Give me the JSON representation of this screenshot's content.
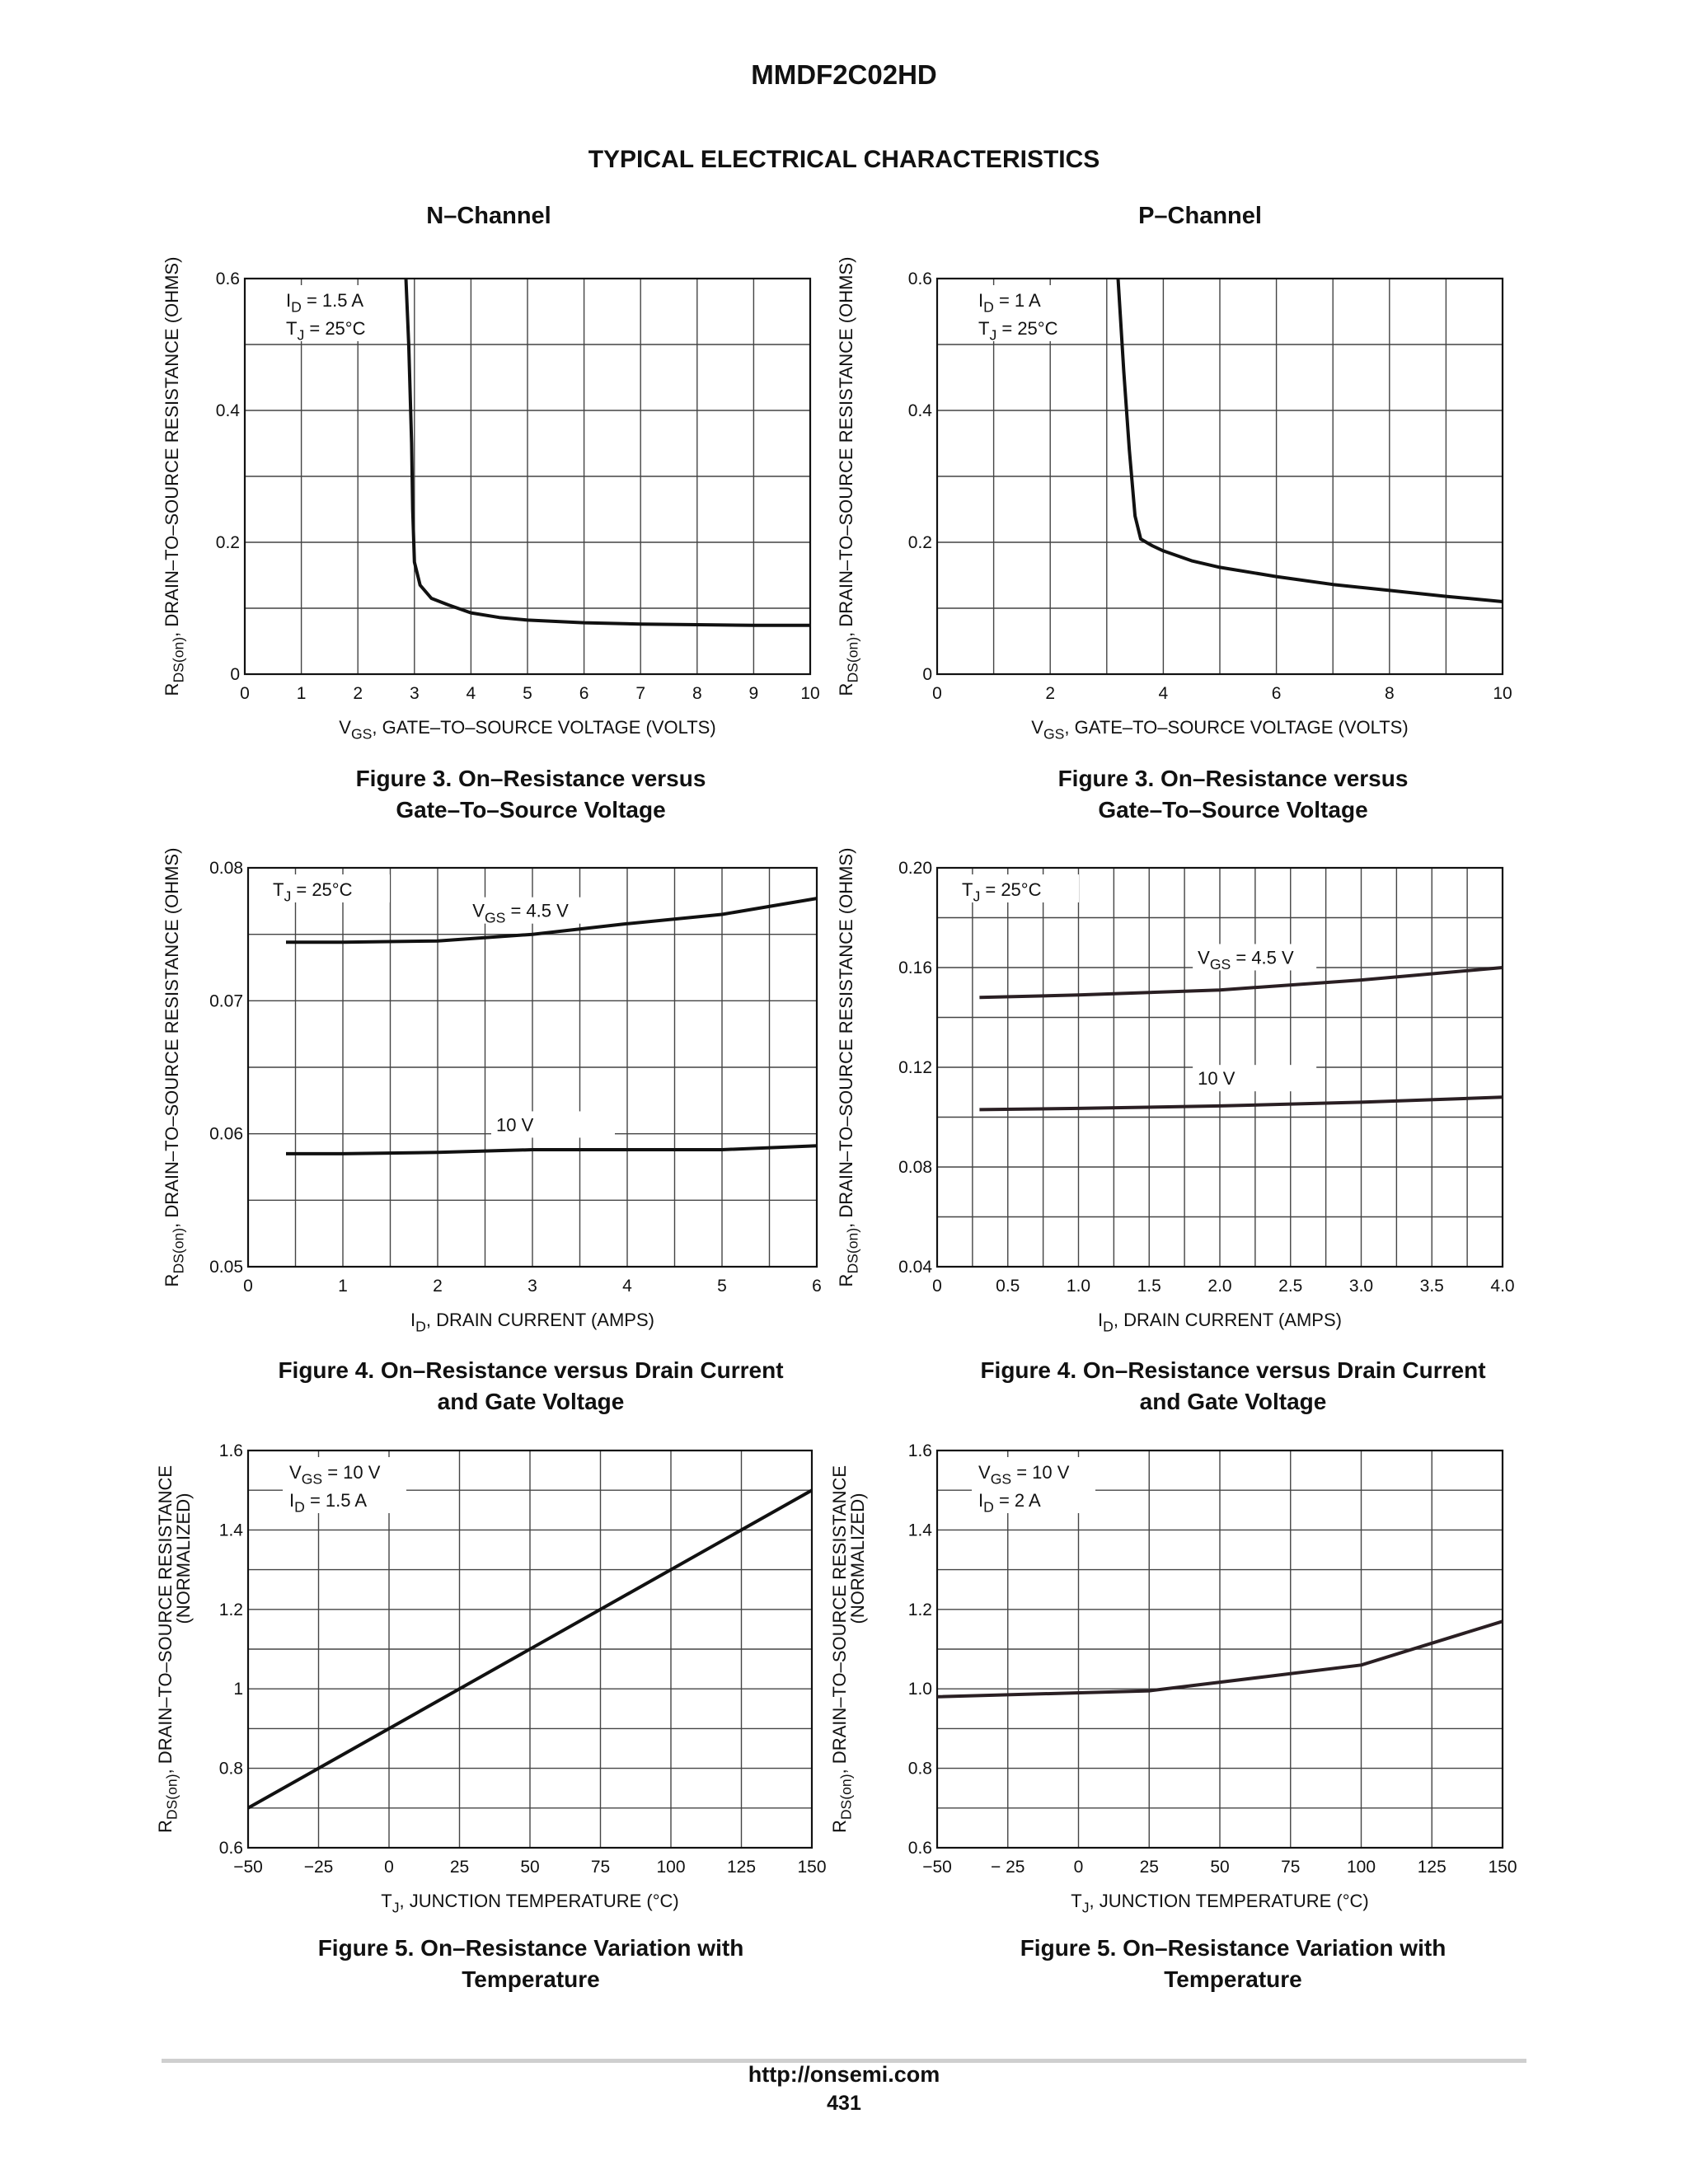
{
  "header": {
    "part_number": "MMDF2C02HD",
    "section_title": "TYPICAL ELECTRICAL CHARACTERISTICS",
    "left_column": "N–Channel",
    "right_column": "P–Channel"
  },
  "footer": {
    "url": "http://onsemi.com",
    "page_number": "431"
  },
  "chart_data": [
    {
      "type": "line",
      "channel": "N–Channel",
      "caption_line1": "Figure 3. On–Resistance versus",
      "caption_line2": "Gate–To–Source Voltage",
      "xlabel": {
        "main": "V",
        "sub": "GS",
        "rest": ", GATE–TO–SOURCE VOLTAGE (VOLTS)"
      },
      "ylabel": {
        "main": "R",
        "sub": "DS(on)",
        "rest": ", DRAIN–TO–SOURCE RESISTANCE (OHMS)"
      },
      "xlim": [
        0,
        10
      ],
      "ylim": [
        0,
        0.6
      ],
      "xgrid": [
        0,
        1,
        2,
        3,
        4,
        5,
        6,
        7,
        8,
        9,
        10
      ],
      "ygrid": [
        0,
        0.1,
        0.2,
        0.3,
        0.4,
        0.5,
        0.6
      ],
      "xticks": [
        0,
        1,
        2,
        3,
        4,
        5,
        6,
        7,
        8,
        9,
        10
      ],
      "xtick_labels": [
        "0",
        "1",
        "2",
        "3",
        "4",
        "5",
        "6",
        "7",
        "8",
        "9",
        "10"
      ],
      "yticks": [
        0,
        0.2,
        0.4,
        0.6
      ],
      "ytick_labels": [
        "0",
        "0.2",
        "0.4",
        "0.6"
      ],
      "conditions": [
        {
          "main": "I",
          "sub": "D",
          "rest": " = 1.5 A"
        },
        {
          "main": "T",
          "sub": "J",
          "rest": " =  25°C"
        }
      ],
      "series": [
        {
          "x": [
            2.85,
            2.9,
            2.95,
            2.97,
            3.0,
            3.1,
            3.3,
            3.6,
            4.0,
            4.5,
            5.0,
            6.0,
            7.0,
            8.0,
            9.0,
            10.0
          ],
          "y": [
            0.6,
            0.5,
            0.35,
            0.25,
            0.17,
            0.135,
            0.115,
            0.105,
            0.093,
            0.086,
            0.082,
            0.078,
            0.076,
            0.075,
            0.074,
            0.074
          ],
          "label": "",
          "label_at": null
        }
      ]
    },
    {
      "type": "line",
      "channel": "P–Channel",
      "caption_line1": "Figure 3. On–Resistance versus",
      "caption_line2": "Gate–To–Source Voltage",
      "xlabel": {
        "main": "V",
        "sub": "GS",
        "rest": ", GATE–TO–SOURCE VOLTAGE (VOLTS)"
      },
      "ylabel": {
        "main": "R",
        "sub": "DS(on)",
        "rest": ", DRAIN–TO–SOURCE RESISTANCE (OHMS)"
      },
      "xlim": [
        0,
        10
      ],
      "ylim": [
        0,
        0.6
      ],
      "xgrid": [
        0,
        1,
        2,
        3,
        4,
        5,
        6,
        7,
        8,
        9,
        10
      ],
      "ygrid": [
        0,
        0.1,
        0.2,
        0.3,
        0.4,
        0.5,
        0.6
      ],
      "xticks": [
        0,
        2,
        4,
        6,
        8,
        10
      ],
      "xtick_labels": [
        "0",
        "2",
        "4",
        "6",
        "8",
        "10"
      ],
      "yticks": [
        0,
        0.2,
        0.4,
        0.6
      ],
      "ytick_labels": [
        "0",
        "0.2",
        "0.4",
        "0.6"
      ],
      "conditions": [
        {
          "main": "I",
          "sub": "D",
          "rest": " = 1 A"
        },
        {
          "main": "T",
          "sub": "J",
          "rest": " =  25°C"
        }
      ],
      "series": [
        {
          "x": [
            3.2,
            3.3,
            3.4,
            3.5,
            3.6,
            3.8,
            4.0,
            4.5,
            5.0,
            6.0,
            7.0,
            8.0,
            9.0,
            10.0
          ],
          "y": [
            0.6,
            0.46,
            0.34,
            0.24,
            0.205,
            0.195,
            0.187,
            0.172,
            0.162,
            0.148,
            0.136,
            0.127,
            0.118,
            0.11
          ],
          "label": "",
          "label_at": null
        }
      ]
    },
    {
      "type": "line",
      "channel": "N–Channel",
      "caption_line1": "Figure 4. On–Resistance versus Drain Current",
      "caption_line2": "and Gate Voltage",
      "xlabel": {
        "main": "I",
        "sub": "D",
        "rest": ", DRAIN CURRENT (AMPS)"
      },
      "ylabel": {
        "main": "R",
        "sub": "DS(on)",
        "rest": ", DRAIN–TO–SOURCE RESISTANCE (OHMS)"
      },
      "xlim": [
        0,
        6
      ],
      "ylim": [
        0.05,
        0.08
      ],
      "xgrid": [
        0,
        0.5,
        1,
        1.5,
        2,
        2.5,
        3,
        3.5,
        4,
        4.5,
        5,
        5.5,
        6
      ],
      "ygrid": [
        0.05,
        0.055,
        0.06,
        0.065,
        0.07,
        0.075,
        0.08
      ],
      "xticks": [
        0,
        1,
        2,
        3,
        4,
        5,
        6
      ],
      "xtick_labels": [
        "0",
        "1",
        "2",
        "3",
        "4",
        "5",
        "6"
      ],
      "yticks": [
        0.05,
        0.06,
        0.07,
        0.08
      ],
      "ytick_labels": [
        "0.05",
        "0.06",
        "0.07",
        "0.08"
      ],
      "conditions": [
        {
          "main": "T",
          "sub": "J",
          "rest": " =  25°C"
        }
      ],
      "series": [
        {
          "x": [
            0.4,
            1.0,
            2.0,
            3.0,
            4.0,
            5.0,
            6.0
          ],
          "y": [
            0.0744,
            0.0744,
            0.0745,
            0.075,
            0.0758,
            0.0765,
            0.0777
          ],
          "label": {
            "main": "V",
            "sub": "GS",
            "rest": " = 4.5 V"
          },
          "label_at": [
            2.75,
            0.0763
          ]
        },
        {
          "x": [
            0.4,
            1.0,
            2.0,
            3.0,
            4.0,
            5.0,
            6.0
          ],
          "y": [
            0.0585,
            0.0585,
            0.0586,
            0.0588,
            0.0588,
            0.0588,
            0.0591
          ],
          "label": {
            "main": "10 V",
            "sub": "",
            "rest": ""
          },
          "label_at": [
            3.0,
            0.0602
          ]
        }
      ]
    },
    {
      "type": "line",
      "channel": "P–Channel",
      "caption_line1": "Figure 4. On–Resistance versus Drain Current",
      "caption_line2": "and Gate Voltage",
      "xlabel": {
        "main": "I",
        "sub": "D",
        "rest": ", DRAIN CURRENT (AMPS)"
      },
      "ylabel": {
        "main": "R",
        "sub": "DS(on)",
        "rest": ", DRAIN–TO–SOURCE RESISTANCE (OHMS)"
      },
      "xlim": [
        0,
        4
      ],
      "ylim": [
        0.04,
        0.2
      ],
      "xgrid": [
        0,
        0.25,
        0.5,
        0.75,
        1,
        1.25,
        1.5,
        1.75,
        2,
        2.25,
        2.5,
        2.75,
        3,
        3.25,
        3.5,
        3.75,
        4
      ],
      "ygrid": [
        0.04,
        0.06,
        0.08,
        0.1,
        0.12,
        0.14,
        0.16,
        0.18,
        0.2
      ],
      "xticks": [
        0,
        0.5,
        1,
        1.5,
        2,
        2.5,
        3,
        3.5,
        4
      ],
      "xtick_labels": [
        "0",
        "0.5",
        "1.0",
        "1.5",
        "2.0",
        "2.5",
        "3.0",
        "3.5",
        "4.0"
      ],
      "yticks": [
        0.04,
        0.08,
        0.12,
        0.16,
        0.2
      ],
      "ytick_labels": [
        "0.04",
        "0.08",
        "0.12",
        "0.16",
        "0.20"
      ],
      "conditions": [
        {
          "main": "T",
          "sub": "J",
          "rest": " =  25°C"
        }
      ],
      "series": [
        {
          "x": [
            0.3,
            1.0,
            2.0,
            3.0,
            4.0
          ],
          "y": [
            0.148,
            0.149,
            0.151,
            0.155,
            0.16
          ],
          "label": {
            "main": "V",
            "sub": "GS",
            "rest": " = 4.5 V"
          },
          "label_at": [
            2.1,
            0.1615
          ]
        },
        {
          "x": [
            0.3,
            1.0,
            2.0,
            3.0,
            4.0
          ],
          "y": [
            0.103,
            0.1035,
            0.1045,
            0.106,
            0.108
          ],
          "label": {
            "main": "10 V",
            "sub": "",
            "rest": ""
          },
          "label_at": [
            2.1,
            0.113
          ]
        }
      ]
    },
    {
      "type": "line",
      "channel": "N–Channel",
      "caption_line1": "Figure 5. On–Resistance Variation with",
      "caption_line2": "Temperature",
      "xlabel": {
        "main": "T",
        "sub": "J",
        "rest": ", JUNCTION TEMPERATURE (°C)"
      },
      "ylabel": {
        "main": "R",
        "sub": "DS(on)",
        "rest": ", DRAIN–TO–SOURCE RESISTANCE",
        "line2": "(NORMALIZED)"
      },
      "xlim": [
        -50,
        150
      ],
      "ylim": [
        0.6,
        1.6
      ],
      "xgrid": [
        -50,
        -25,
        0,
        25,
        50,
        75,
        100,
        125,
        150
      ],
      "ygrid": [
        0.6,
        0.7,
        0.8,
        0.9,
        1.0,
        1.1,
        1.2,
        1.3,
        1.4,
        1.5,
        1.6
      ],
      "xticks": [
        -50,
        -25,
        0,
        25,
        50,
        75,
        100,
        125,
        150
      ],
      "xtick_labels": [
        "−50",
        "−25",
        "0",
        "25",
        "50",
        "75",
        "100",
        "125",
        "150"
      ],
      "yticks": [
        0.6,
        0.8,
        1.0,
        1.2,
        1.4,
        1.6
      ],
      "ytick_labels": [
        "0.6",
        "0.8",
        "1",
        "1.2",
        "1.4",
        "1.6"
      ],
      "conditions": [
        {
          "main": "V",
          "sub": "GS",
          "rest": " = 10 V"
        },
        {
          "main": "I",
          "sub": "D",
          "rest": " = 1.5 A"
        }
      ],
      "series": [
        {
          "x": [
            -50,
            150
          ],
          "y": [
            0.7,
            1.5
          ],
          "label": "",
          "label_at": null
        }
      ]
    },
    {
      "type": "line",
      "channel": "P–Channel",
      "caption_line1": "Figure 5. On–Resistance Variation with",
      "caption_line2": "Temperature",
      "xlabel": {
        "main": "T",
        "sub": "J",
        "rest": ", JUNCTION TEMPERATURE (°C)"
      },
      "ylabel": {
        "main": "R",
        "sub": "DS(on)",
        "rest": ", DRAIN–TO–SOURCE RESISTANCE",
        "line2": "(NORMALIZED)"
      },
      "xlim": [
        -50,
        150
      ],
      "ylim": [
        0.6,
        1.6
      ],
      "xgrid": [
        -50,
        -25,
        0,
        25,
        50,
        75,
        100,
        125,
        150
      ],
      "ygrid": [
        0.6,
        0.7,
        0.8,
        0.9,
        1.0,
        1.1,
        1.2,
        1.3,
        1.4,
        1.5,
        1.6
      ],
      "xticks": [
        -50,
        -25,
        0,
        25,
        50,
        75,
        100,
        125,
        150
      ],
      "xtick_labels": [
        "−50",
        "− 25",
        "0",
        "25",
        "50",
        "75",
        "100",
        "125",
        "150"
      ],
      "yticks": [
        0.6,
        0.8,
        1.0,
        1.2,
        1.4,
        1.6
      ],
      "ytick_labels": [
        "0.6",
        "0.8",
        "1.0",
        "1.2",
        "1.4",
        "1.6"
      ],
      "conditions": [
        {
          "main": "V",
          "sub": "GS",
          "rest": " = 10 V"
        },
        {
          "main": "I",
          "sub": "D",
          "rest": " = 2 A"
        }
      ],
      "series": [
        {
          "x": [
            -50,
            25,
            100,
            150
          ],
          "y": [
            0.98,
            0.995,
            1.06,
            1.17
          ],
          "label": "",
          "label_at": null
        }
      ]
    }
  ]
}
